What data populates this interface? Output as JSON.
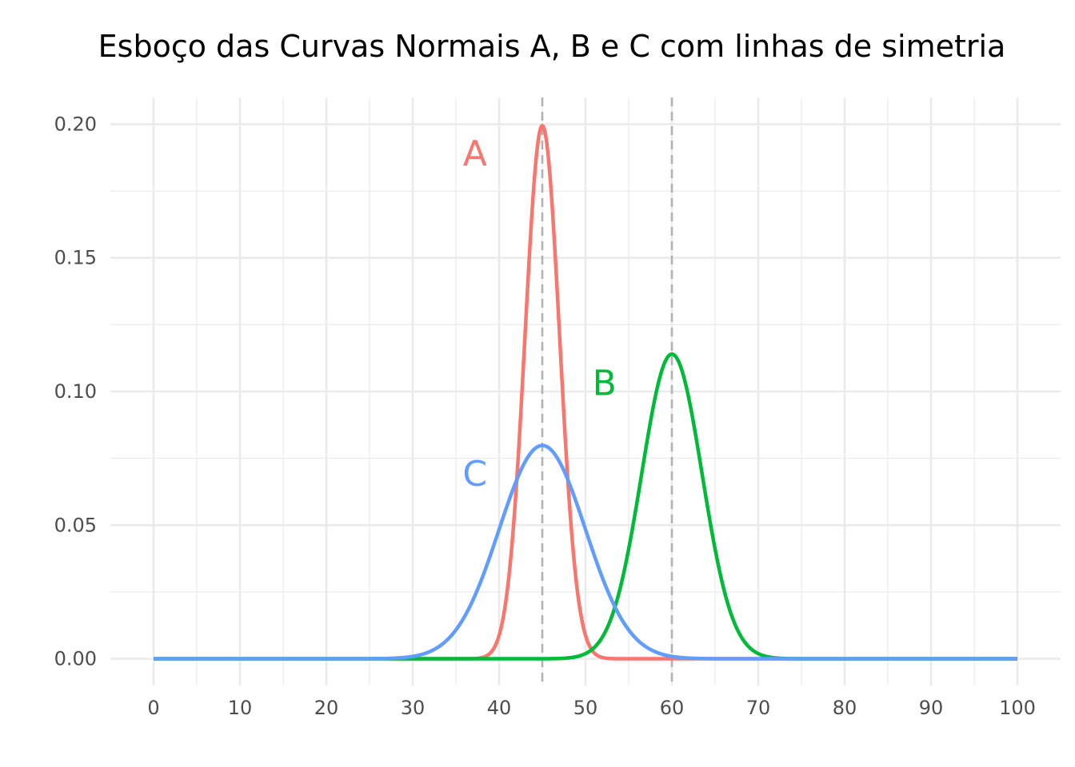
{
  "chart_data": {
    "type": "line",
    "title": "Esboço das Curvas Normais A, B e C com linhas de simetria",
    "xlabel": "",
    "ylabel": "",
    "xlim": [
      -5,
      105
    ],
    "ylim": [
      -0.01,
      0.21
    ],
    "x_ticks": [
      0,
      10,
      20,
      30,
      40,
      50,
      60,
      70,
      80,
      90,
      100
    ],
    "x_tick_labels": [
      "0",
      "10",
      "20",
      "30",
      "40",
      "50",
      "60",
      "70",
      "80",
      "90",
      "100"
    ],
    "y_ticks": [
      0,
      0.05,
      0.1,
      0.15,
      0.2
    ],
    "y_tick_labels": [
      "0.00",
      "0.05",
      "0.10",
      "0.15",
      "0.20"
    ],
    "grid": true,
    "legend": "none",
    "symmetry_lines": [
      45,
      60
    ],
    "series": [
      {
        "name": "A",
        "mean": 45,
        "sd": 2.0,
        "color": "#F8766D",
        "label": "A",
        "label_x": 37.2,
        "label_y": 0.189
      },
      {
        "name": "B",
        "mean": 60,
        "sd": 3.5,
        "color": "#00BA38",
        "label": "B",
        "label_x": 52.2,
        "label_y": 0.103
      },
      {
        "name": "C",
        "mean": 45,
        "sd": 5.0,
        "color": "#619CFF",
        "label": "C",
        "label_x": 37.2,
        "label_y": 0.069
      }
    ]
  }
}
